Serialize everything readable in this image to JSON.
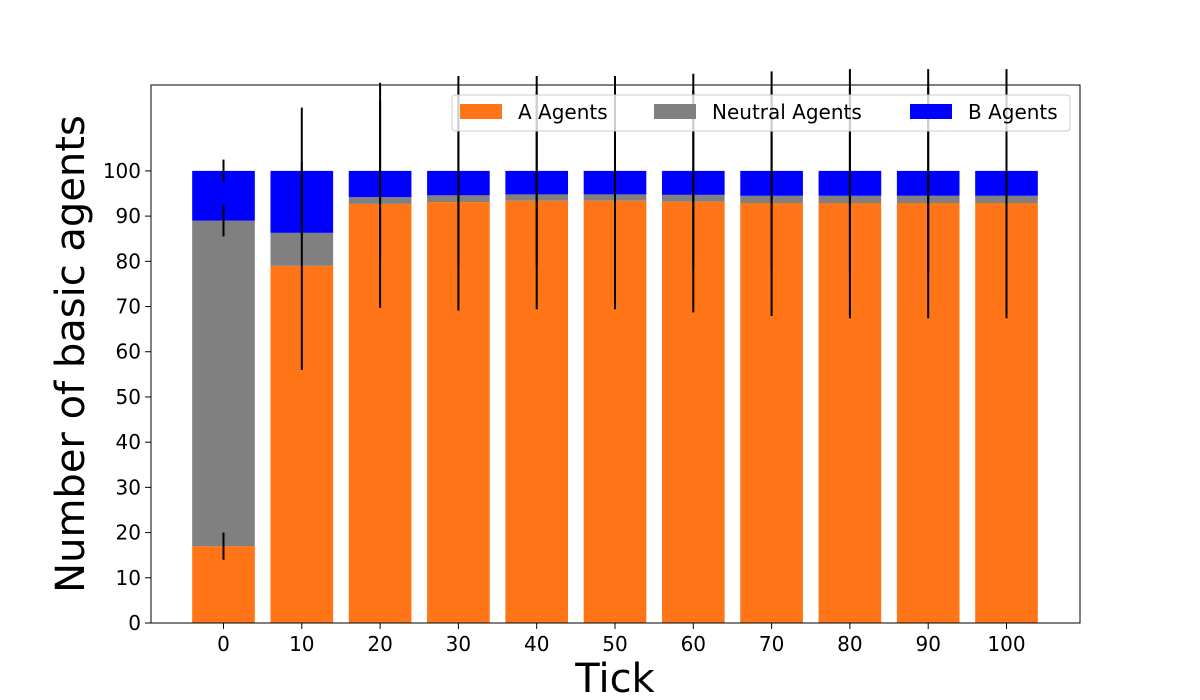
{
  "chart_data": {
    "type": "bar",
    "stacked": true,
    "title": "",
    "xlabel": "Tick",
    "ylabel": "Number of basic agents",
    "categories": [
      "0",
      "10",
      "20",
      "30",
      "40",
      "50",
      "60",
      "70",
      "80",
      "90",
      "100"
    ],
    "ylim": [
      0,
      119
    ],
    "yticks": [
      0,
      10,
      20,
      30,
      40,
      50,
      60,
      70,
      80,
      90,
      100
    ],
    "grid": false,
    "legend": {
      "placement": "top-right",
      "columns": 3
    },
    "series": [
      {
        "name": "A Agents",
        "color": "#ff7518",
        "values": [
          17,
          79,
          92.7,
          93.1,
          93.4,
          93.4,
          93.2,
          92.9,
          92.9,
          92.9,
          92.9
        ],
        "error": [
          3,
          23,
          23,
          24,
          24,
          24,
          24.5,
          25,
          25.5,
          25.5,
          25.5
        ]
      },
      {
        "name": "Neutral Agents",
        "color": "#808080",
        "values": [
          72,
          7.3,
          1.5,
          1.5,
          1.4,
          1.4,
          1.5,
          1.6,
          1.6,
          1.6,
          1.6
        ],
        "error": [
          3.5,
          0,
          0,
          0,
          0,
          0,
          0,
          0,
          0,
          0,
          0
        ]
      },
      {
        "name": "B Agents",
        "color": "#0000ff",
        "values": [
          11,
          13.7,
          5.8,
          5.4,
          5.2,
          5.2,
          5.3,
          5.5,
          5.5,
          5.5,
          5.5
        ],
        "error": [
          2.5,
          14,
          19.5,
          21,
          21,
          21,
          21.5,
          22,
          22.5,
          22.5,
          22.5
        ]
      }
    ]
  }
}
